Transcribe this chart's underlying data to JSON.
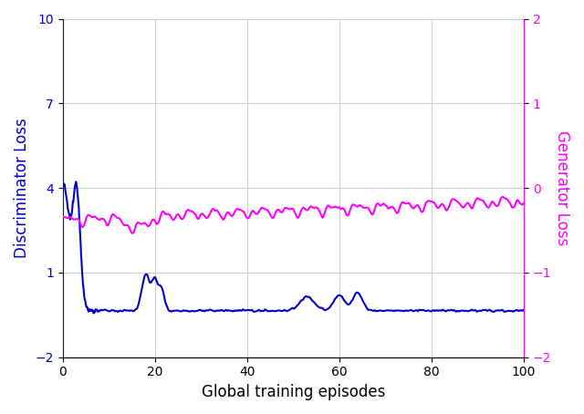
{
  "xlim": [
    0,
    100
  ],
  "ylim_left": [
    -2,
    10
  ],
  "ylim_right": [
    -2,
    2
  ],
  "yticks_left": [
    -2,
    1,
    4,
    7,
    10
  ],
  "yticks_right": [
    -2,
    -1,
    0,
    1,
    2
  ],
  "xticks": [
    0,
    20,
    40,
    60,
    80,
    100
  ],
  "xlabel": "Global training episodes",
  "ylabel_left": "Discriminator Loss",
  "ylabel_right": "Generator Loss",
  "disc_color": "#0000CC",
  "gen_color": "#FF00FF",
  "linewidth": 1.5,
  "background_color": "#FFFFFF"
}
